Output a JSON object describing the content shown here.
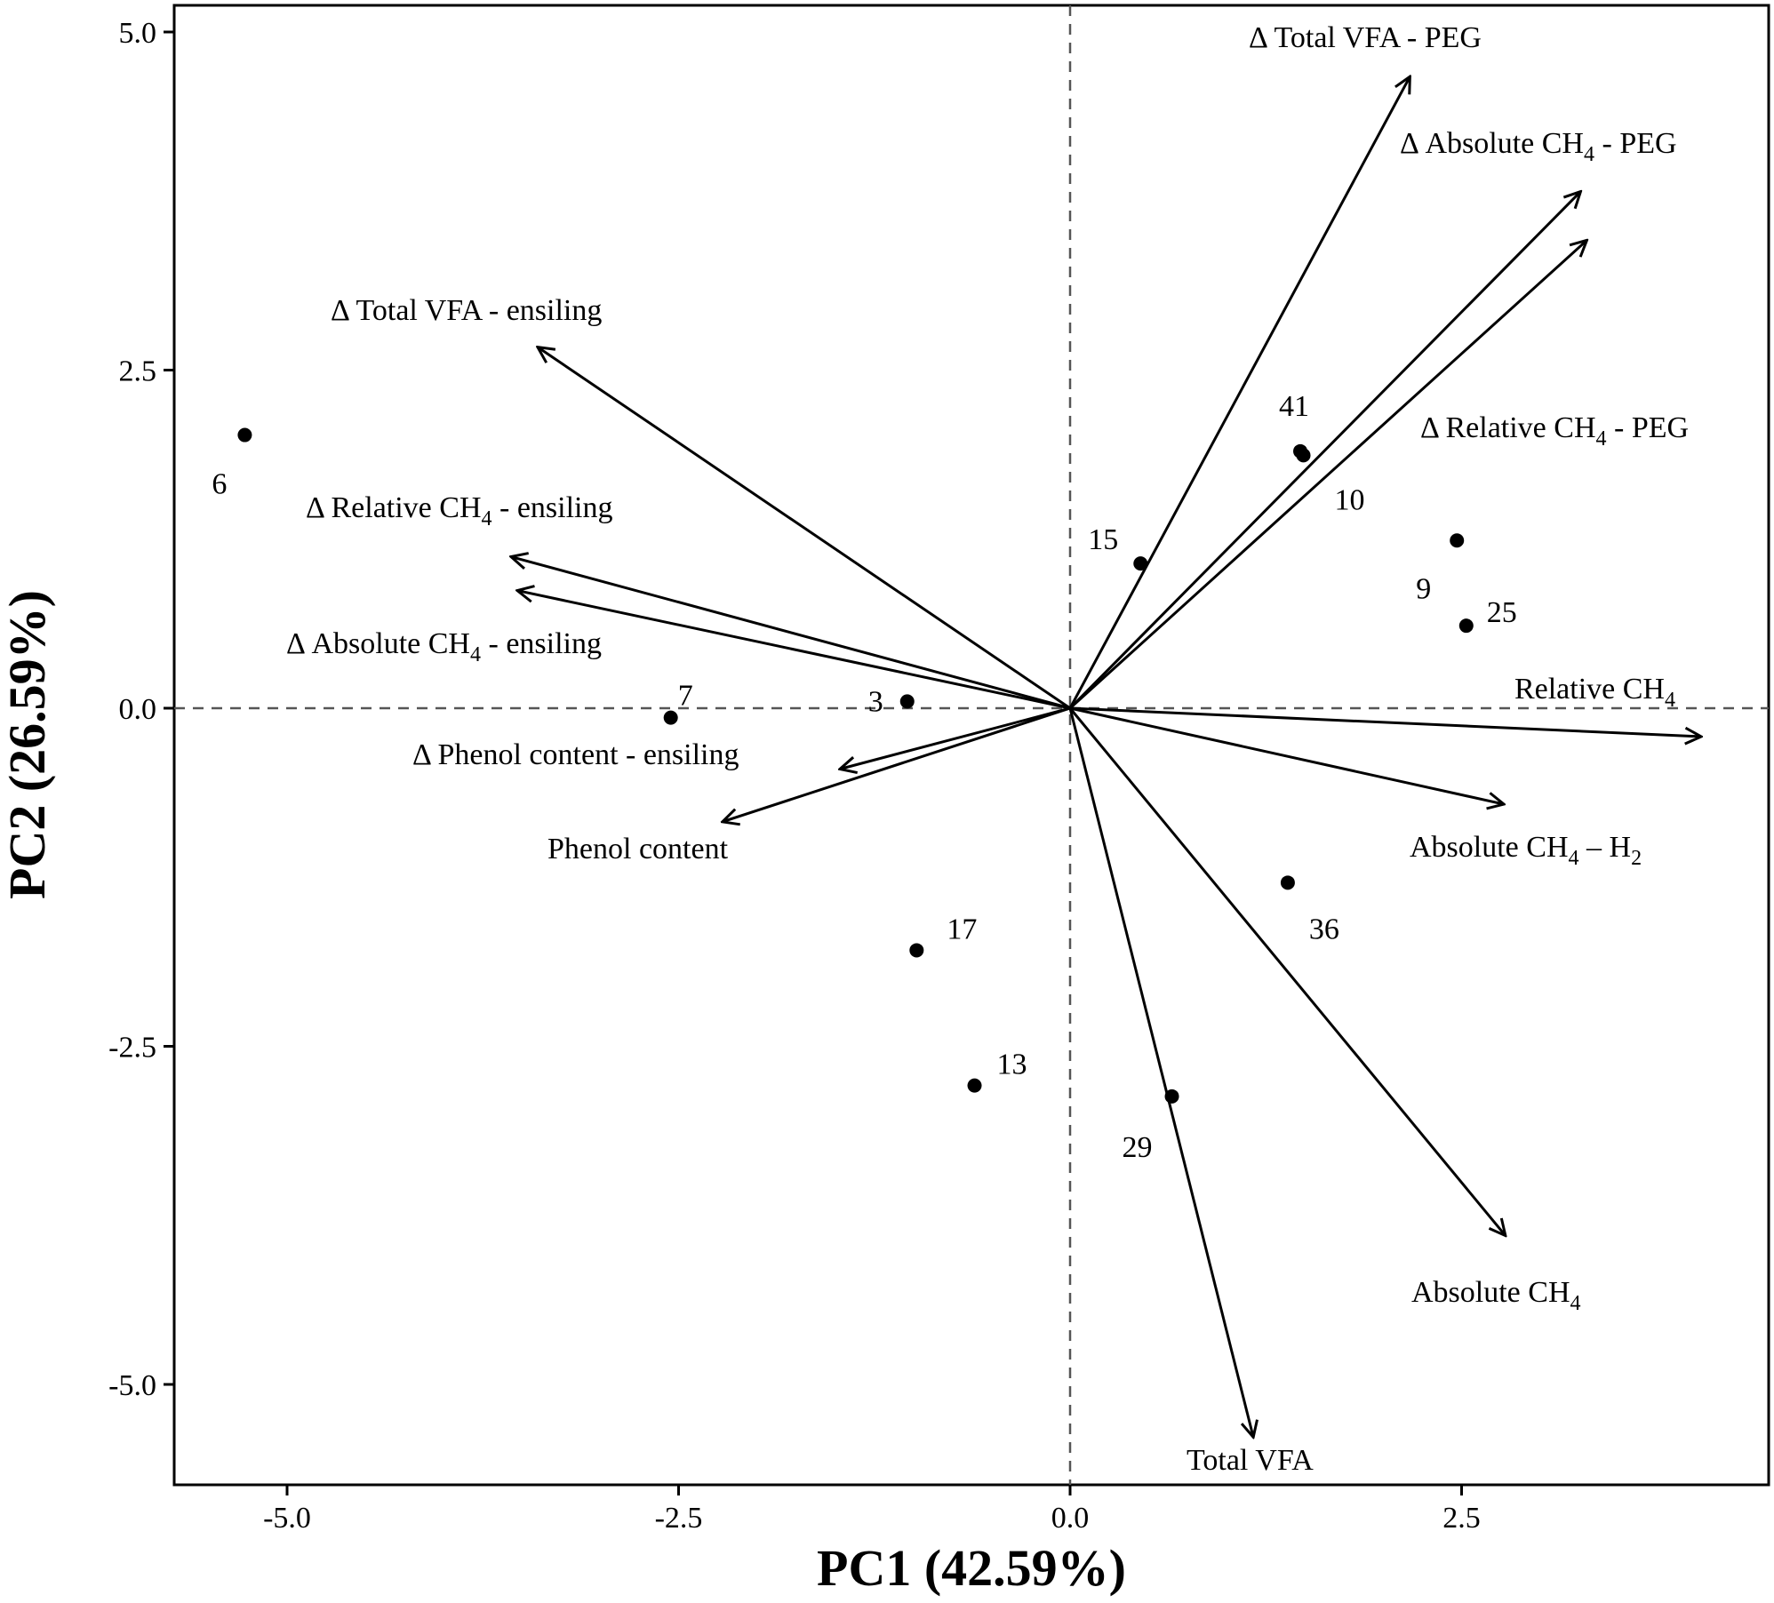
{
  "chart_data": {
    "type": "scatter",
    "subtype": "pca-biplot",
    "xlabel": "PC1 (42.59%)",
    "ylabel": "PC2 (26.59%)",
    "xlim": [
      -5.7,
      4.5
    ],
    "ylim": [
      -5.75,
      5.15
    ],
    "x_ticks": [
      {
        "value": -5.0,
        "label": "-5.0"
      },
      {
        "value": -2.5,
        "label": "-2.5"
      },
      {
        "value": 0.0,
        "label": "0.0"
      },
      {
        "value": 2.5,
        "label": "2.5"
      }
    ],
    "y_ticks": [
      {
        "value": 5.0,
        "label": "5.0"
      },
      {
        "value": 2.5,
        "label": "2.5"
      },
      {
        "value": 0.0,
        "label": "0.0"
      },
      {
        "value": -2.5,
        "label": "-2.5"
      },
      {
        "value": -5.0,
        "label": "-5.0"
      }
    ],
    "reference_lines": {
      "x": 0,
      "y": 0,
      "style": "dashed"
    },
    "grid": false,
    "points": [
      {
        "label": "6",
        "x": -5.27,
        "y": 2.02
      },
      {
        "label": "7",
        "x": -2.55,
        "y": -0.07
      },
      {
        "label": "3",
        "x": -1.04,
        "y": 0.05
      },
      {
        "label": "17",
        "x": -0.98,
        "y": -1.79
      },
      {
        "label": "13",
        "x": -0.61,
        "y": -2.79
      },
      {
        "label": "15",
        "x": 0.45,
        "y": 1.07
      },
      {
        "label": "29",
        "x": 0.65,
        "y": -2.87
      },
      {
        "label": "41",
        "x": 1.47,
        "y": 1.9
      },
      {
        "label": "10",
        "x": 1.49,
        "y": 1.87
      },
      {
        "label": "36",
        "x": 1.39,
        "y": -1.29
      },
      {
        "label": "9",
        "x": 2.47,
        "y": 1.24
      },
      {
        "label": "25",
        "x": 2.53,
        "y": 0.61
      }
    ],
    "vectors": [
      {
        "label_main": "Δ Total VFA - PEG",
        "label_sub": "",
        "label_tail": "",
        "x": 2.17,
        "y": 4.67
      },
      {
        "label_main": "Δ Absolute CH",
        "label_sub": "4",
        "label_tail": "- PEG",
        "x": 3.26,
        "y": 3.82
      },
      {
        "label_main": "Δ Relative CH",
        "label_sub": "4",
        "label_tail": "- PEG",
        "x": 3.3,
        "y": 3.46
      },
      {
        "label_main": "Δ Total VFA - ensiling",
        "label_sub": "",
        "label_tail": "",
        "x": -3.4,
        "y": 2.67
      },
      {
        "label_main": "Δ Relative CH",
        "label_sub": "4",
        "label_tail": "- ensiling",
        "x": -3.57,
        "y": 1.12
      },
      {
        "label_main": "Δ Absolute CH",
        "label_sub": "4",
        "label_tail": "- ensiling",
        "x": -3.53,
        "y": 0.87
      },
      {
        "label_main": "Δ Phenol content - ensiling",
        "label_sub": "",
        "label_tail": "",
        "x": -1.47,
        "y": -0.45
      },
      {
        "label_main": "Phenol content",
        "label_sub": "",
        "label_tail": "",
        "x": -2.22,
        "y": -0.84
      },
      {
        "label_main": "Relative CH",
        "label_sub": "4",
        "label_tail": "",
        "x": 4.03,
        "y": -0.21
      },
      {
        "label_main": "Absolute CH",
        "label_sub": "4",
        "label_tail": "– H",
        "label_sub2": "2",
        "x": 2.77,
        "y": -0.71
      },
      {
        "label_main": "Absolute CH",
        "label_sub": "4",
        "label_tail": "",
        "x": 2.78,
        "y": -3.9
      },
      {
        "label_main": "Total VFA",
        "label_sub": "",
        "label_tail": "",
        "x": 1.17,
        "y": -5.39
      }
    ]
  }
}
